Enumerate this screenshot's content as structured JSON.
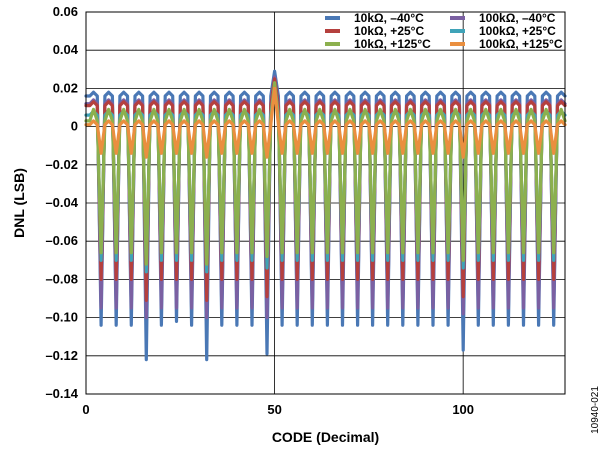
{
  "chart_data": {
    "type": "line",
    "title": "",
    "xlabel": "CODE (Decimal)",
    "ylabel": "DNL (LSB)",
    "xlim": [
      0,
      127
    ],
    "ylim": [
      -0.14,
      0.06
    ],
    "xticks": [
      0,
      50,
      100
    ],
    "yticks": [
      -0.14,
      -0.12,
      -0.1,
      -0.08,
      -0.06,
      -0.04,
      -0.02,
      0,
      0.02,
      0.04,
      0.06
    ],
    "ytick_labels": [
      "–0.14",
      "–0.12",
      "–0.10",
      "–0.08",
      "–0.06",
      "–0.04",
      "–0.02",
      "0",
      "0.02",
      "0.04",
      "0.06"
    ],
    "grid": "major",
    "legend_position": "top-right",
    "dip_codes": [
      4,
      8,
      12,
      16,
      20,
      24,
      28,
      32,
      36,
      40,
      44,
      48,
      52,
      56,
      60,
      64,
      68,
      72,
      76,
      80,
      84,
      88,
      92,
      96,
      100,
      104,
      108,
      112,
      116,
      120,
      124
    ],
    "spike_code": 50,
    "series": [
      {
        "name": "10kΩ, –40°C",
        "color": "#4a78b5",
        "high": 0.018,
        "mid": 0.016,
        "spike": 0.029,
        "dips": [
          -0.104,
          -0.104,
          -0.104,
          -0.122,
          -0.104,
          -0.102,
          -0.104,
          -0.122,
          -0.104,
          -0.104,
          -0.104,
          -0.119,
          -0.104,
          -0.104,
          -0.104,
          -0.104,
          -0.104,
          -0.104,
          -0.104,
          -0.104,
          -0.104,
          -0.104,
          -0.104,
          -0.104,
          -0.117,
          -0.104,
          -0.104,
          -0.104,
          -0.104,
          -0.104,
          -0.104
        ]
      },
      {
        "name": "100kΩ, –40°C",
        "color": "#7b60a2",
        "high": 0.014,
        "mid": 0.012,
        "spike": 0.026,
        "dips": [
          -0.095,
          -0.095,
          -0.095,
          -0.1,
          -0.095,
          -0.095,
          -0.095,
          -0.1,
          -0.095,
          -0.095,
          -0.095,
          -0.1,
          -0.095,
          -0.095,
          -0.095,
          -0.095,
          -0.095,
          -0.095,
          -0.095,
          -0.095,
          -0.095,
          -0.095,
          -0.095,
          -0.095,
          -0.098,
          -0.095,
          -0.095,
          -0.095,
          -0.095,
          -0.095,
          -0.095
        ]
      },
      {
        "name": "10kΩ, +25°C",
        "color": "#b5403e",
        "high": 0.013,
        "mid": 0.011,
        "spike": 0.025,
        "dips": [
          -0.08,
          -0.08,
          -0.08,
          -0.091,
          -0.08,
          -0.08,
          -0.08,
          -0.091,
          -0.08,
          -0.08,
          -0.08,
          -0.089,
          -0.08,
          -0.08,
          -0.08,
          -0.08,
          -0.08,
          -0.08,
          -0.08,
          -0.08,
          -0.08,
          -0.08,
          -0.08,
          -0.08,
          -0.089,
          -0.08,
          -0.08,
          -0.08,
          -0.08,
          -0.08,
          -0.08
        ]
      },
      {
        "name": "100kΩ, +25°C",
        "color": "#3fa3b8",
        "high": 0.008,
        "mid": 0.006,
        "spike": 0.022,
        "dips": [
          -0.07,
          -0.07,
          -0.07,
          -0.076,
          -0.07,
          -0.07,
          -0.07,
          -0.076,
          -0.07,
          -0.07,
          -0.07,
          -0.074,
          -0.07,
          -0.07,
          -0.07,
          -0.07,
          -0.07,
          -0.07,
          -0.07,
          -0.07,
          -0.07,
          -0.07,
          -0.07,
          -0.07,
          -0.074,
          -0.07,
          -0.07,
          -0.07,
          -0.07,
          -0.07,
          -0.07
        ]
      },
      {
        "name": "10kΩ, +125°C",
        "color": "#8cb04e",
        "high": 0.009,
        "mid": 0.003,
        "spike": 0.023,
        "dips": [
          -0.066,
          -0.066,
          -0.066,
          -0.072,
          -0.066,
          -0.066,
          -0.066,
          -0.072,
          -0.066,
          -0.066,
          -0.066,
          -0.068,
          -0.066,
          -0.066,
          -0.066,
          -0.066,
          -0.066,
          -0.066,
          -0.066,
          -0.066,
          -0.066,
          -0.066,
          -0.066,
          -0.066,
          -0.07,
          -0.066,
          -0.066,
          -0.066,
          -0.066,
          -0.066,
          -0.066
        ]
      },
      {
        "name": "100kΩ, +125°C",
        "color": "#ea8f3f",
        "high": 0.003,
        "mid": 0.001,
        "spike": 0.02,
        "dips": [
          -0.014,
          -0.014,
          -0.014,
          -0.016,
          -0.014,
          -0.014,
          -0.014,
          -0.016,
          -0.014,
          -0.014,
          -0.014,
          -0.016,
          -0.014,
          -0.014,
          -0.014,
          -0.014,
          -0.014,
          -0.014,
          -0.014,
          -0.014,
          -0.014,
          -0.014,
          -0.014,
          -0.014,
          -0.016,
          -0.014,
          -0.014,
          -0.014,
          -0.014,
          -0.014,
          -0.014
        ]
      }
    ],
    "legend_order": [
      0,
      1,
      2,
      3,
      4,
      5
    ]
  },
  "figure_id": "10940-021"
}
